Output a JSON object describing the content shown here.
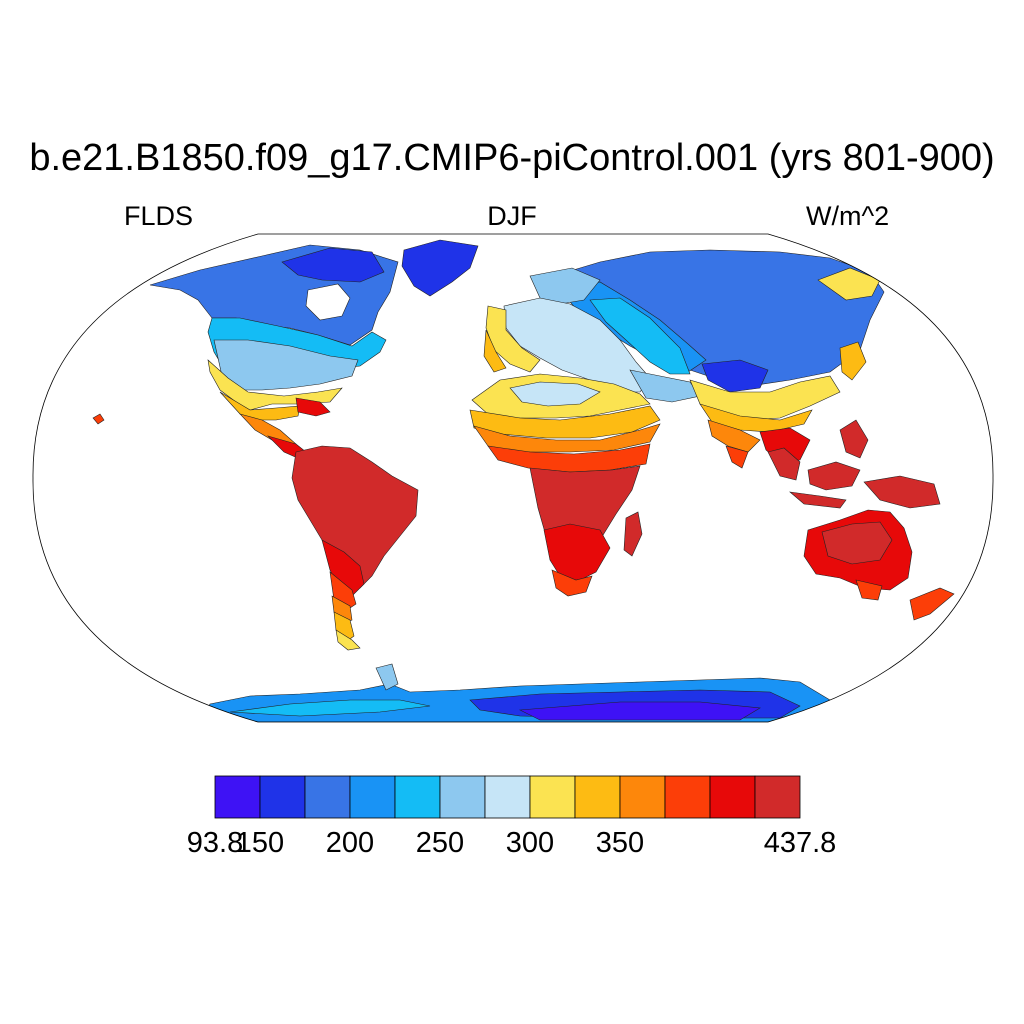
{
  "plot": {
    "title": "b.e21.B1850.f09_g17.CMIP6-piControl.001 (yrs 801-900)",
    "variable": "FLDS",
    "season": "DJF",
    "units": "W/m^2"
  },
  "colorbar": {
    "colors": [
      "#3e12f5",
      "#1f33e8",
      "#3874e6",
      "#1993f5",
      "#14bcf5",
      "#8dc8ef",
      "#c6e5f7",
      "#fbe351",
      "#fdbb13",
      "#fd870b",
      "#fc3e08",
      "#e70909",
      "#d12a2a"
    ],
    "labels": [
      {
        "text": "93.8",
        "boundary": 0
      },
      {
        "text": "150",
        "boundary": 1
      },
      {
        "text": "200",
        "boundary": 3
      },
      {
        "text": "250",
        "boundary": 5
      },
      {
        "text": "300",
        "boundary": 7
      },
      {
        "text": "350",
        "boundary": 9
      },
      {
        "text": "437.8",
        "boundary": 13
      }
    ]
  }
}
